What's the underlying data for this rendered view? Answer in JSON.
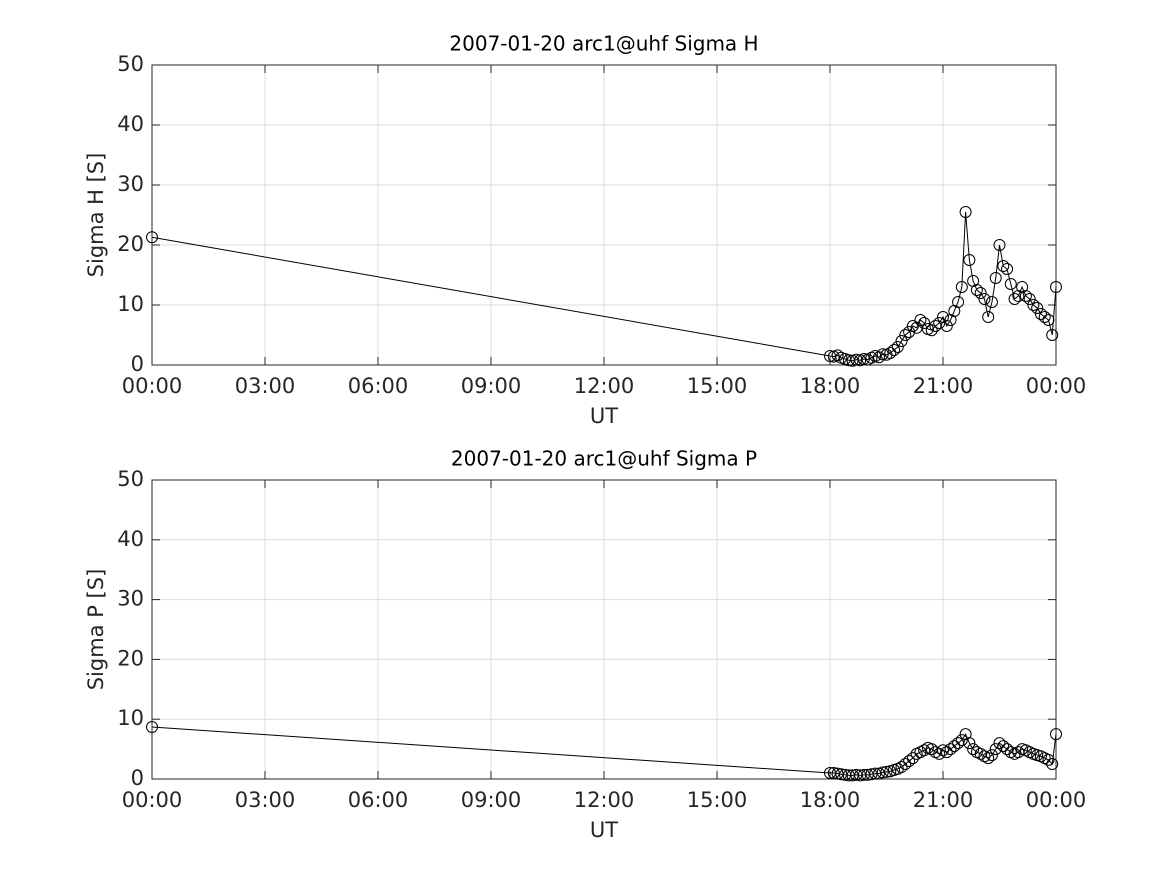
{
  "chart_data": [
    {
      "type": "line",
      "title": "2007-01-20  arc1@uhf Sigma H",
      "xlabel": "UT",
      "ylabel": "Sigma H [S]",
      "xlim": [
        0,
        24
      ],
      "xticks": [
        {
          "value": 0,
          "label": "00:00"
        },
        {
          "value": 3,
          "label": "03:00"
        },
        {
          "value": 6,
          "label": "06:00"
        },
        {
          "value": 9,
          "label": "09:00"
        },
        {
          "value": 12,
          "label": "12:00"
        },
        {
          "value": 15,
          "label": "15:00"
        },
        {
          "value": 18,
          "label": "18:00"
        },
        {
          "value": 21,
          "label": "21:00"
        },
        {
          "value": 24,
          "label": "00:00"
        }
      ],
      "ylim": [
        0,
        50
      ],
      "yticks": [
        0,
        10,
        20,
        30,
        40,
        50
      ],
      "grid": true,
      "marker": "o",
      "color": "#000000",
      "x": [
        0,
        18.0,
        18.1,
        18.2,
        18.3,
        18.4,
        18.5,
        18.6,
        18.7,
        18.8,
        18.9,
        19.0,
        19.1,
        19.2,
        19.3,
        19.4,
        19.5,
        19.6,
        19.7,
        19.8,
        19.9,
        20.0,
        20.1,
        20.2,
        20.3,
        20.4,
        20.5,
        20.6,
        20.7,
        20.8,
        20.9,
        21.0,
        21.1,
        21.2,
        21.3,
        21.4,
        21.5,
        21.6,
        21.7,
        21.8,
        21.9,
        22.0,
        22.1,
        22.2,
        22.3,
        22.4,
        22.5,
        22.6,
        22.7,
        22.8,
        22.9,
        23.0,
        23.1,
        23.2,
        23.3,
        23.4,
        23.5,
        23.6,
        23.7,
        23.8,
        23.9,
        24.0
      ],
      "values": [
        21.3,
        1.5,
        1.4,
        1.6,
        1.2,
        1.0,
        0.8,
        0.7,
        0.9,
        0.8,
        1.0,
        0.9,
        1.2,
        1.5,
        1.3,
        1.8,
        1.7,
        2.0,
        2.5,
        3.0,
        4.0,
        5.0,
        5.5,
        6.5,
        6.2,
        7.5,
        7.0,
        6.0,
        5.8,
        6.5,
        7.0,
        8.0,
        6.5,
        7.5,
        9.0,
        10.5,
        13.0,
        25.5,
        17.5,
        14.0,
        12.5,
        12.0,
        11.0,
        8.0,
        10.5,
        14.5,
        20.0,
        16.5,
        16.0,
        13.5,
        11.0,
        11.5,
        13.0,
        11.5,
        11.0,
        10.0,
        9.5,
        8.5,
        8.0,
        7.5,
        5.0,
        13.0
      ]
    },
    {
      "type": "line",
      "title": "2007-01-20  arc1@uhf Sigma P",
      "xlabel": "UT",
      "ylabel": "Sigma P [S]",
      "xlim": [
        0,
        24
      ],
      "xticks": [
        {
          "value": 0,
          "label": "00:00"
        },
        {
          "value": 3,
          "label": "03:00"
        },
        {
          "value": 6,
          "label": "06:00"
        },
        {
          "value": 9,
          "label": "09:00"
        },
        {
          "value": 12,
          "label": "12:00"
        },
        {
          "value": 15,
          "label": "15:00"
        },
        {
          "value": 18,
          "label": "18:00"
        },
        {
          "value": 21,
          "label": "21:00"
        },
        {
          "value": 24,
          "label": "00:00"
        }
      ],
      "ylim": [
        0,
        50
      ],
      "yticks": [
        0,
        10,
        20,
        30,
        40,
        50
      ],
      "grid": true,
      "marker": "o",
      "color": "#000000",
      "x": [
        0,
        18.0,
        18.1,
        18.2,
        18.3,
        18.4,
        18.5,
        18.6,
        18.7,
        18.8,
        18.9,
        19.0,
        19.1,
        19.2,
        19.3,
        19.4,
        19.5,
        19.6,
        19.7,
        19.8,
        19.9,
        20.0,
        20.1,
        20.2,
        20.3,
        20.4,
        20.5,
        20.6,
        20.7,
        20.8,
        20.9,
        21.0,
        21.1,
        21.2,
        21.3,
        21.4,
        21.5,
        21.6,
        21.7,
        21.8,
        21.9,
        22.0,
        22.1,
        22.2,
        22.3,
        22.4,
        22.5,
        22.6,
        22.7,
        22.8,
        22.9,
        23.0,
        23.1,
        23.2,
        23.3,
        23.4,
        23.5,
        23.6,
        23.7,
        23.8,
        23.9,
        24.0
      ],
      "values": [
        8.7,
        1.0,
        1.0,
        0.9,
        0.8,
        0.7,
        0.6,
        0.6,
        0.7,
        0.6,
        0.7,
        0.7,
        0.8,
        0.9,
        0.9,
        1.1,
        1.2,
        1.3,
        1.5,
        1.7,
        2.0,
        2.5,
        3.0,
        3.5,
        4.2,
        4.5,
        4.8,
        5.2,
        5.0,
        4.5,
        4.2,
        4.8,
        4.5,
        5.0,
        5.5,
        6.0,
        6.5,
        7.5,
        6.0,
        5.0,
        4.5,
        4.2,
        3.8,
        3.5,
        4.0,
        5.0,
        6.0,
        5.5,
        5.0,
        4.5,
        4.2,
        4.5,
        5.0,
        4.8,
        4.5,
        4.2,
        4.0,
        3.8,
        3.5,
        3.2,
        2.5,
        7.5
      ]
    }
  ]
}
